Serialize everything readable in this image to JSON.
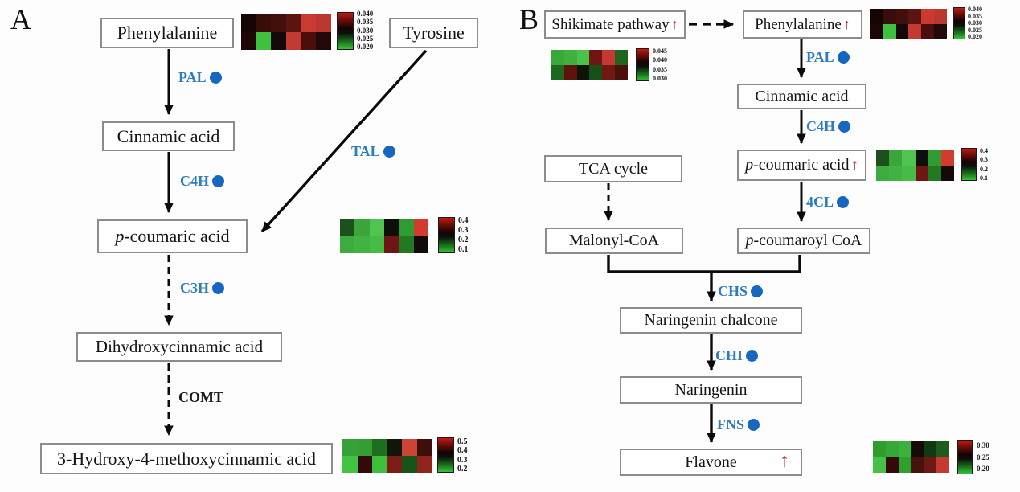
{
  "colors": {
    "enzyme_text": "#2e7cc0",
    "enzyme_dot": "#1767c0",
    "up_arrow": "#c41e1a",
    "box_border": "#8c8c8c"
  },
  "panelA": {
    "label": "A",
    "boxes": {
      "phenylalanine": {
        "label": "Phenylalanine"
      },
      "tyrosine": {
        "label": "Tyrosine"
      },
      "cinnamic_acid": {
        "label": "Cinnamic acid"
      },
      "p_coumaric_acid": {
        "italic": "p",
        "label": "-coumaric acid"
      },
      "dihydroxycinnamic_acid": {
        "label": "Dihydroxycinnamic acid"
      },
      "hydroxy_methoxycinnamic_acid": {
        "label": "3-Hydroxy-4-methoxycinnamic acid"
      }
    },
    "enzymes": {
      "pal": {
        "label": "PAL"
      },
      "c4h": {
        "label": "C4H"
      },
      "tal": {
        "label": "TAL"
      },
      "c3h": {
        "label": "C3H"
      },
      "comt": {
        "label": "COMT"
      }
    },
    "heatmaps": {
      "phenylalanine": {
        "rows": [
          [
            "#150404",
            "#380c08",
            "#440e0a",
            "#5c1410",
            "#c93a30",
            "#bb3830"
          ],
          [
            "#1d0606",
            "#3fc03f",
            "#160808",
            "#c23a32",
            "#4c0e0c",
            "#220808"
          ]
        ],
        "scale": [
          "0.040",
          "0.035",
          "0.030",
          "0.025",
          "0.020"
        ]
      },
      "p_coumaric_acid": {
        "rows": [
          [
            "#1d501d",
            "#3aa53a",
            "#50c350",
            "#0e0e0a",
            "#309b30",
            "#d23c30"
          ],
          [
            "#3dab3d",
            "#42b342",
            "#46bc46",
            "#6e1613",
            "#217a21",
            "#150a0a"
          ]
        ],
        "scale": [
          "0.4",
          "0.3",
          "0.2",
          "0.1"
        ]
      },
      "hydroxy_methoxycinnamic_acid": {
        "rows": [
          [
            "#38a038",
            "#339e33",
            "#1d6e1d",
            "#111606",
            "#cc4438",
            "#3d0f0a"
          ],
          [
            "#42c442",
            "#340a08",
            "#3dbe3d",
            "#7c1c16",
            "#175417",
            "#8e241c"
          ]
        ],
        "scale": [
          "0.5",
          "0.4",
          "0.3",
          "0.2"
        ]
      }
    }
  },
  "panelB": {
    "label": "B",
    "up_arrow": "↑",
    "boxes": {
      "shikimate_pathway": {
        "label": "Shikimate pathway",
        "up": true
      },
      "phenylalanine": {
        "label": "Phenylalanine",
        "up": true
      },
      "cinnamic_acid": {
        "label": "Cinnamic acid"
      },
      "p_coumaric_acid": {
        "italic": "p",
        "label": "-coumaric acid",
        "up": true
      },
      "tca_cycle": {
        "label": "TCA cycle"
      },
      "malonyl_coa": {
        "label": "Malonyl-CoA"
      },
      "p_coumaroyl_coa": {
        "italic": "p",
        "label": "-coumaroyl CoA"
      },
      "naringenin_chalcone": {
        "label": "Naringenin chalcone"
      },
      "naringenin": {
        "label": "Naringenin"
      },
      "flavone": {
        "label": "Flavone",
        "up": true
      }
    },
    "enzymes": {
      "pal": {
        "label": "PAL"
      },
      "c4h": {
        "label": "C4H"
      },
      "4cl": {
        "label": "4CL"
      },
      "chs": {
        "label": "CHS"
      },
      "chi": {
        "label": "CHI"
      },
      "fns": {
        "label": "FNS"
      }
    },
    "heatmaps": {
      "shikimate_pathway": {
        "rows": [
          [
            "#38a838",
            "#40b040",
            "#4cc24c",
            "#701511",
            "#c43a30",
            "#1e661e"
          ],
          [
            "#1d681d",
            "#5e130e",
            "#0e1408",
            "#175017",
            "#701814",
            "#4c100c"
          ]
        ],
        "scale": [
          "0.045",
          "0.040",
          "0.035",
          "0.030"
        ]
      },
      "phenylalanine": {
        "rows": [
          [
            "#150404",
            "#380c08",
            "#440e0a",
            "#5c1410",
            "#c93a30",
            "#bb3830"
          ],
          [
            "#1d0606",
            "#3fc03f",
            "#160808",
            "#c23a32",
            "#4c0e0c",
            "#220808"
          ]
        ],
        "scale": [
          "0.040",
          "0.035",
          "0.030",
          "0.025",
          "0.020"
        ]
      },
      "p_coumaric_acid": {
        "rows": [
          [
            "#1d501d",
            "#3aa53a",
            "#50c350",
            "#0e0e0a",
            "#309b30",
            "#d23c30"
          ],
          [
            "#3dab3d",
            "#42b342",
            "#46bc46",
            "#6e1613",
            "#217a21",
            "#150a0a"
          ]
        ],
        "scale": [
          "0.4",
          "0.3",
          "0.2",
          "0.1"
        ]
      },
      "flavone": {
        "rows": [
          [
            "#2f9e2f",
            "#36a836",
            "#3cb23c",
            "#140c08",
            "#123a12",
            "#1c5c1c"
          ],
          [
            "#46c146",
            "#340a08",
            "#2fa02f",
            "#47120c",
            "#6e1814",
            "#c43a30"
          ]
        ],
        "scale": [
          "0.30",
          "0.25",
          "0.20"
        ]
      }
    }
  }
}
